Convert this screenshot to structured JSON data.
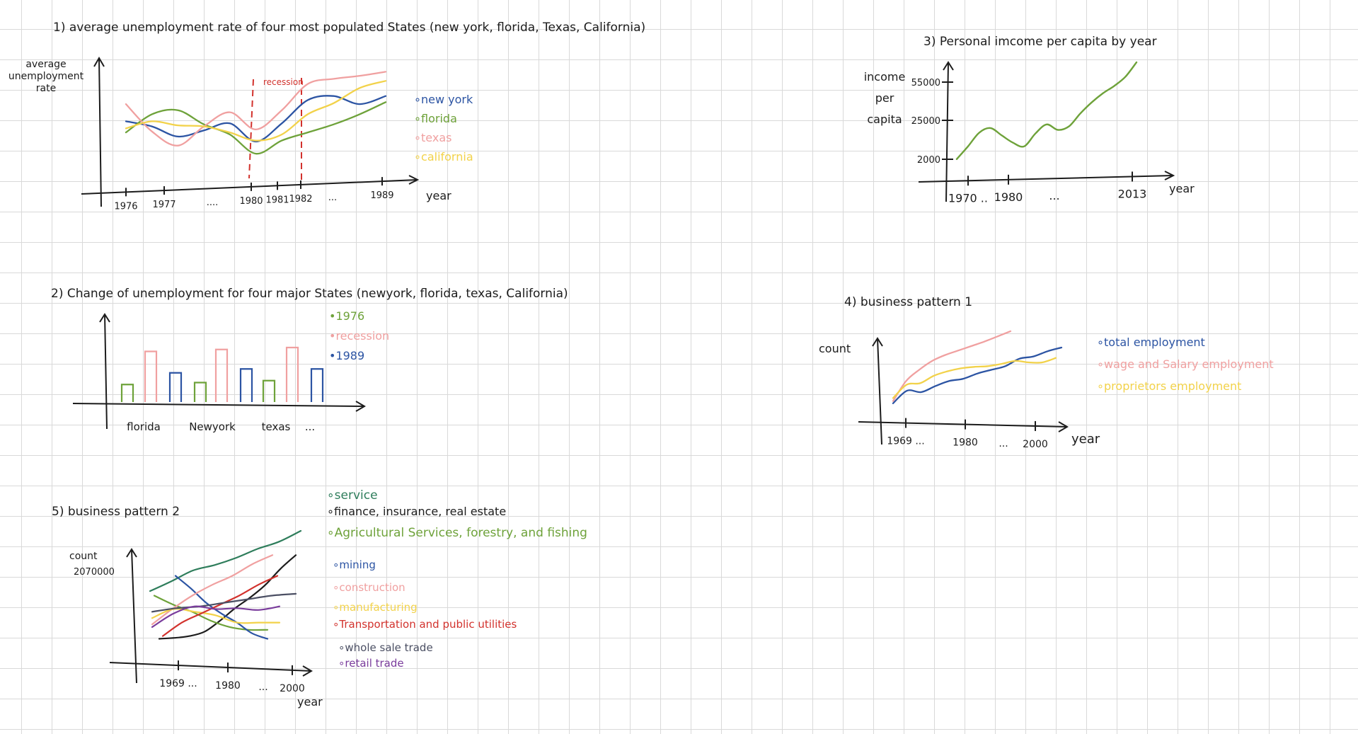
{
  "colors": {
    "ink": "#1c1c1c",
    "newyork": "#2c54a3",
    "florida": "#6ea23a",
    "texas": "#f0a0a0",
    "california": "#f2d24a",
    "recession_line": "#d2322d",
    "service": "#2e7d5b",
    "finance": "#1c1c1c",
    "agri": "#6ea23a",
    "mining": "#2c54a3",
    "construction": "#f0a0a0",
    "manufacturing": "#f2d24a",
    "transport": "#d2322d",
    "wholesale": "#4b4f63",
    "retail": "#7a3c9c"
  },
  "chart_data": [
    {
      "id": "c1",
      "type": "line",
      "title": "1) average unemployment rate of four most populated States (new york, florida, Texas, California)",
      "ylabel": "average unemployment rate",
      "xlabel": "year",
      "x_ticks": [
        "1976",
        "1977",
        "....",
        "1980",
        "1981",
        "1982",
        "...",
        "1989"
      ],
      "recession_label": "recession",
      "recession_range": [
        "1980",
        "1982"
      ],
      "series": [
        {
          "name": "new york",
          "color_key": "newyork",
          "values": [
            0.55,
            0.5,
            0.4,
            0.46,
            0.53,
            0.35,
            0.53,
            0.76,
            0.8,
            0.72,
            0.8
          ]
        },
        {
          "name": "florida",
          "color_key": "florida",
          "values": [
            0.44,
            0.62,
            0.66,
            0.52,
            0.42,
            0.23,
            0.36,
            0.44,
            0.52,
            0.62,
            0.74
          ]
        },
        {
          "name": "texas",
          "color_key": "texas",
          "values": [
            0.72,
            0.45,
            0.31,
            0.5,
            0.64,
            0.47,
            0.66,
            0.92,
            0.97,
            1.0,
            1.04
          ]
        },
        {
          "name": "california",
          "color_key": "california",
          "values": [
            0.48,
            0.55,
            0.51,
            0.5,
            0.44,
            0.36,
            0.42,
            0.62,
            0.73,
            0.88,
            0.95
          ]
        }
      ]
    },
    {
      "id": "c2",
      "type": "bar",
      "title": "2) Change of unemployment for four major States (newyork, florida, texas, California)",
      "categories": [
        "florida",
        "Newyork",
        "texas",
        "..."
      ],
      "series_names": [
        "1976",
        "recession",
        "1989"
      ],
      "groups": [
        {
          "category": "florida",
          "values": [
            0.45,
            1.3,
            0
          ]
        },
        {
          "category": "florida-b",
          "values": [
            0,
            0,
            0
          ]
        },
        {
          "category": "Newyork",
          "values": [
            0,
            0,
            0.75
          ]
        },
        {
          "category": "mix-1",
          "values": [
            0.5,
            1.35,
            0
          ]
        },
        {
          "category": "mix-2",
          "values": [
            0,
            0,
            0.85
          ]
        },
        {
          "category": "texas",
          "values": [
            0.55,
            1.4,
            0.85
          ]
        }
      ],
      "bars": [
        {
          "series": 0,
          "value": 0.45
        },
        {
          "series": 1,
          "value": 1.3
        },
        {
          "series": 2,
          "value": 0.75
        },
        {
          "series": 0,
          "value": 0.5
        },
        {
          "series": 1,
          "value": 1.35
        },
        {
          "series": 2,
          "value": 0.85
        },
        {
          "series": 0,
          "value": 0.55
        },
        {
          "series": 1,
          "value": 1.4
        },
        {
          "series": 2,
          "value": 0.85
        }
      ]
    },
    {
      "id": "c3",
      "type": "line",
      "title": "3) Personal imcome per capita by year",
      "ylabel": "income per capita",
      "xlabel": "year",
      "y_ticks": [
        "55000",
        "25000",
        "2000"
      ],
      "x_ticks": [
        "1970 ..",
        "1980",
        "...",
        "2013"
      ],
      "series": [
        {
          "name": "",
          "color_key": "florida",
          "values": [
            2000,
            9000,
            16500,
            19000,
            15000,
            11000,
            9000,
            16000,
            21000,
            18000,
            20000,
            27000,
            33000,
            38000,
            42000,
            47000,
            55000
          ]
        }
      ]
    },
    {
      "id": "c4",
      "type": "line",
      "title": "4) business pattern 1",
      "ylabel": "count",
      "xlabel": "year",
      "x_ticks": [
        "1969 ...",
        "1980",
        "...",
        "2000"
      ],
      "series": [
        {
          "name": "total employment",
          "color_key": "newyork",
          "values": [
            0.05,
            0.22,
            0.2,
            0.28,
            0.35,
            0.38,
            0.45,
            0.5,
            0.55,
            0.65,
            0.68,
            0.75,
            0.8
          ]
        },
        {
          "name": "wage and Salary employment",
          "color_key": "texas",
          "values": [
            0.08,
            0.35,
            0.5,
            0.62,
            0.7,
            0.76,
            0.82,
            0.88,
            0.95,
            1.02
          ]
        },
        {
          "name": "proprietors employment",
          "color_key": "california",
          "values": [
            0.12,
            0.3,
            0.32,
            0.42,
            0.48,
            0.52,
            0.54,
            0.55,
            0.58,
            0.62,
            0.6,
            0.6,
            0.66
          ]
        }
      ]
    },
    {
      "id": "c5",
      "type": "line",
      "title": "5) business pattern 2",
      "ylabel": "count",
      "y_tick": "2070000",
      "xlabel": "year",
      "x_ticks": [
        "1969 ...",
        "1980",
        "...",
        "2000"
      ],
      "series": [
        {
          "name": "service",
          "color_key": "service",
          "values": [
            0.55,
            0.66,
            0.78,
            0.84,
            0.92,
            1.02,
            1.1,
            1.22
          ]
        },
        {
          "name": "finance, insurance, real estate",
          "color_key": "finance",
          "values": [
            0.02,
            0.03,
            0.05,
            0.1,
            0.22,
            0.36,
            0.48,
            0.62,
            0.8,
            0.95
          ]
        },
        {
          "name": "Agricultural Services, forestry, and fishing",
          "color_key": "agri",
          "values": [
            0.5,
            0.4,
            0.32,
            0.22,
            0.15,
            0.12,
            0.12
          ]
        },
        {
          "name": "mining",
          "color_key": "mining",
          "values": [
            0.72,
            0.58,
            0.42,
            0.3,
            0.2,
            0.08,
            0.02
          ]
        },
        {
          "name": "construction",
          "color_key": "construction",
          "values": [
            0.18,
            0.35,
            0.5,
            0.62,
            0.72,
            0.85,
            0.95
          ]
        },
        {
          "name": "manufacturing",
          "color_key": "manufacturing",
          "values": [
            0.25,
            0.35,
            0.32,
            0.28,
            0.2,
            0.2,
            0.2
          ]
        },
        {
          "name": "Transportation and public utilities",
          "color_key": "transport",
          "values": [
            0.05,
            0.2,
            0.3,
            0.4,
            0.5,
            0.62,
            0.72
          ]
        },
        {
          "name": "whole sale trade",
          "color_key": "wholesale",
          "values": [
            0.32,
            0.36,
            0.38,
            0.42,
            0.46,
            0.5,
            0.52
          ]
        },
        {
          "name": "retail trade",
          "color_key": "retail",
          "values": [
            0.15,
            0.3,
            0.38,
            0.35,
            0.36,
            0.34,
            0.38
          ]
        }
      ]
    }
  ]
}
